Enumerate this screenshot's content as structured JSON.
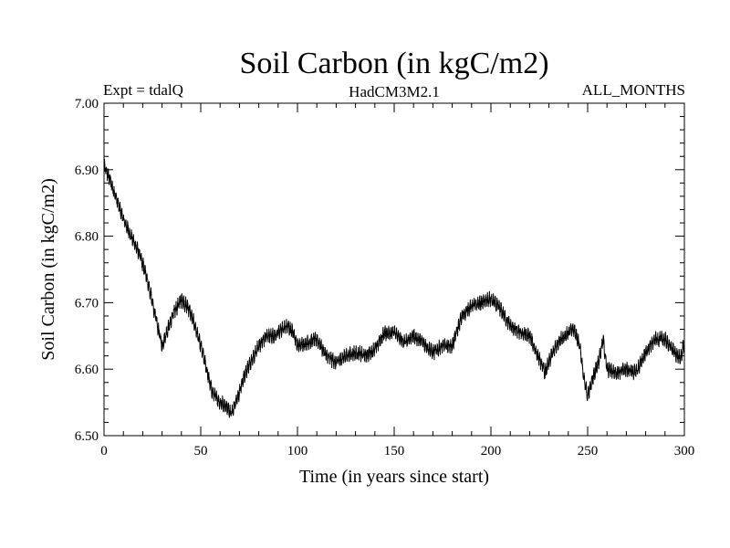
{
  "chart_data": {
    "type": "line",
    "title": "Soil Carbon (in kgC/m2)",
    "subtitle_left": "Expt = tdalQ",
    "subtitle_center": "HadCM3M2.1",
    "subtitle_right": "ALL_MONTHS",
    "xlabel": "Time (in years since start)",
    "ylabel": "Soil Carbon (in kgC/m2)",
    "xlim": [
      0,
      300
    ],
    "ylim": [
      6.5,
      7.0
    ],
    "x_ticks": [
      0,
      50,
      100,
      150,
      200,
      250,
      300
    ],
    "x_tick_labels": [
      "0",
      "50",
      "100",
      "150",
      "200",
      "250",
      "300"
    ],
    "y_ticks": [
      6.5,
      6.6,
      6.7,
      6.8,
      6.9,
      7.0
    ],
    "y_tick_labels": [
      "6.50",
      "6.60",
      "6.70",
      "6.80",
      "6.90",
      "7.00"
    ],
    "series": [
      {
        "name": "Soil Carbon",
        "color": "#000000",
        "monthly_noise_amplitude": 0.012,
        "x": [
          0,
          3,
          6,
          10,
          14,
          18,
          22,
          25,
          28,
          30,
          33,
          36,
          40,
          44,
          47,
          50,
          53,
          56,
          60,
          63,
          66,
          68,
          70,
          73,
          76,
          80,
          84,
          88,
          92,
          95,
          98,
          100,
          105,
          110,
          115,
          120,
          125,
          130,
          135,
          140,
          145,
          150,
          155,
          160,
          165,
          170,
          175,
          180,
          185,
          190,
          195,
          200,
          205,
          210,
          215,
          220,
          225,
          228,
          232,
          236,
          240,
          243,
          246,
          248,
          250,
          253,
          256,
          258,
          260,
          265,
          270,
          275,
          280,
          285,
          290,
          295,
          298,
          300
        ],
        "y": [
          6.905,
          6.885,
          6.86,
          6.825,
          6.8,
          6.775,
          6.74,
          6.7,
          6.66,
          6.635,
          6.66,
          6.685,
          6.705,
          6.69,
          6.665,
          6.635,
          6.6,
          6.565,
          6.55,
          6.545,
          6.535,
          6.55,
          6.565,
          6.595,
          6.61,
          6.635,
          6.65,
          6.65,
          6.66,
          6.665,
          6.655,
          6.635,
          6.64,
          6.645,
          6.62,
          6.61,
          6.62,
          6.625,
          6.62,
          6.63,
          6.655,
          6.655,
          6.64,
          6.65,
          6.64,
          6.625,
          6.635,
          6.635,
          6.68,
          6.695,
          6.7,
          6.705,
          6.69,
          6.665,
          6.655,
          6.65,
          6.615,
          6.595,
          6.625,
          6.645,
          6.655,
          6.66,
          6.635,
          6.585,
          6.56,
          6.59,
          6.615,
          6.645,
          6.6,
          6.595,
          6.6,
          6.595,
          6.625,
          6.645,
          6.645,
          6.625,
          6.615,
          6.64
        ]
      }
    ]
  }
}
